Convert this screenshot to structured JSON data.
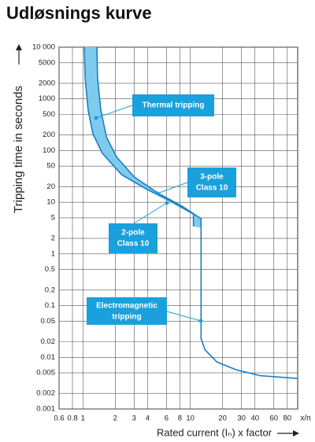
{
  "chart_data": {
    "type": "trip-curve",
    "title": "Udløsnings kurve",
    "x_label": "Rated current (Iₙ) x factor",
    "x_unit_label": "x/n",
    "y_label": "Tripping time in seconds",
    "log_x": true,
    "log_y": true,
    "grid": true,
    "xlim": [
      0.6,
      100
    ],
    "xticks": [
      0.6,
      0.8,
      1,
      2,
      3,
      4,
      6,
      8,
      10,
      20,
      30,
      40,
      60,
      80
    ],
    "ylim": [
      0.001,
      10000
    ],
    "yticks": [
      {
        "value": 10000,
        "label": "10 000"
      },
      5000,
      2000,
      1000,
      500,
      200,
      100,
      50,
      20,
      10,
      5,
      2,
      1,
      0.5,
      0.2,
      0.1,
      0.05,
      0.02,
      0.01,
      0.005,
      0.002,
      0.001
    ],
    "band_color": "#7fcbee",
    "series": [
      {
        "color": "#1a7fc1",
        "x": [
          1.35,
          1.37,
          1.47,
          1.66,
          2.06,
          3,
          5,
          8.3,
          12.6,
          12.6
        ],
        "values": [
          10000,
          2500,
          600,
          180,
          75,
          31,
          15,
          8.5,
          4.8,
          3.2
        ]
      },
      {
        "color": "#1a7fc1",
        "x": [
          1.03,
          1.05,
          1.12,
          1.24,
          1.52,
          2.3,
          3.9,
          6.4,
          10.7,
          10.7
        ],
        "values": [
          10000,
          2500,
          600,
          210,
          88,
          34,
          18,
          10.7,
          5.9,
          3.4
        ]
      },
      {
        "color": "#1a7fc1",
        "x": [
          12.6,
          12.6,
          12.6,
          13.7,
          17.7,
          27,
          45,
          100
        ],
        "values": [
          3.2,
          0.05,
          0.023,
          0.014,
          0.0081,
          0.0057,
          0.0044,
          0.0039
        ]
      }
    ],
    "annotations": [
      {
        "lines": [
          "Thermal tripping"
        ]
      },
      {
        "lines": [
          "3-pole",
          "Class 10"
        ]
      },
      {
        "lines": [
          "2-pole",
          "Class 10"
        ]
      },
      {
        "lines": [
          "Electromagnetic",
          "tripping"
        ]
      }
    ]
  }
}
